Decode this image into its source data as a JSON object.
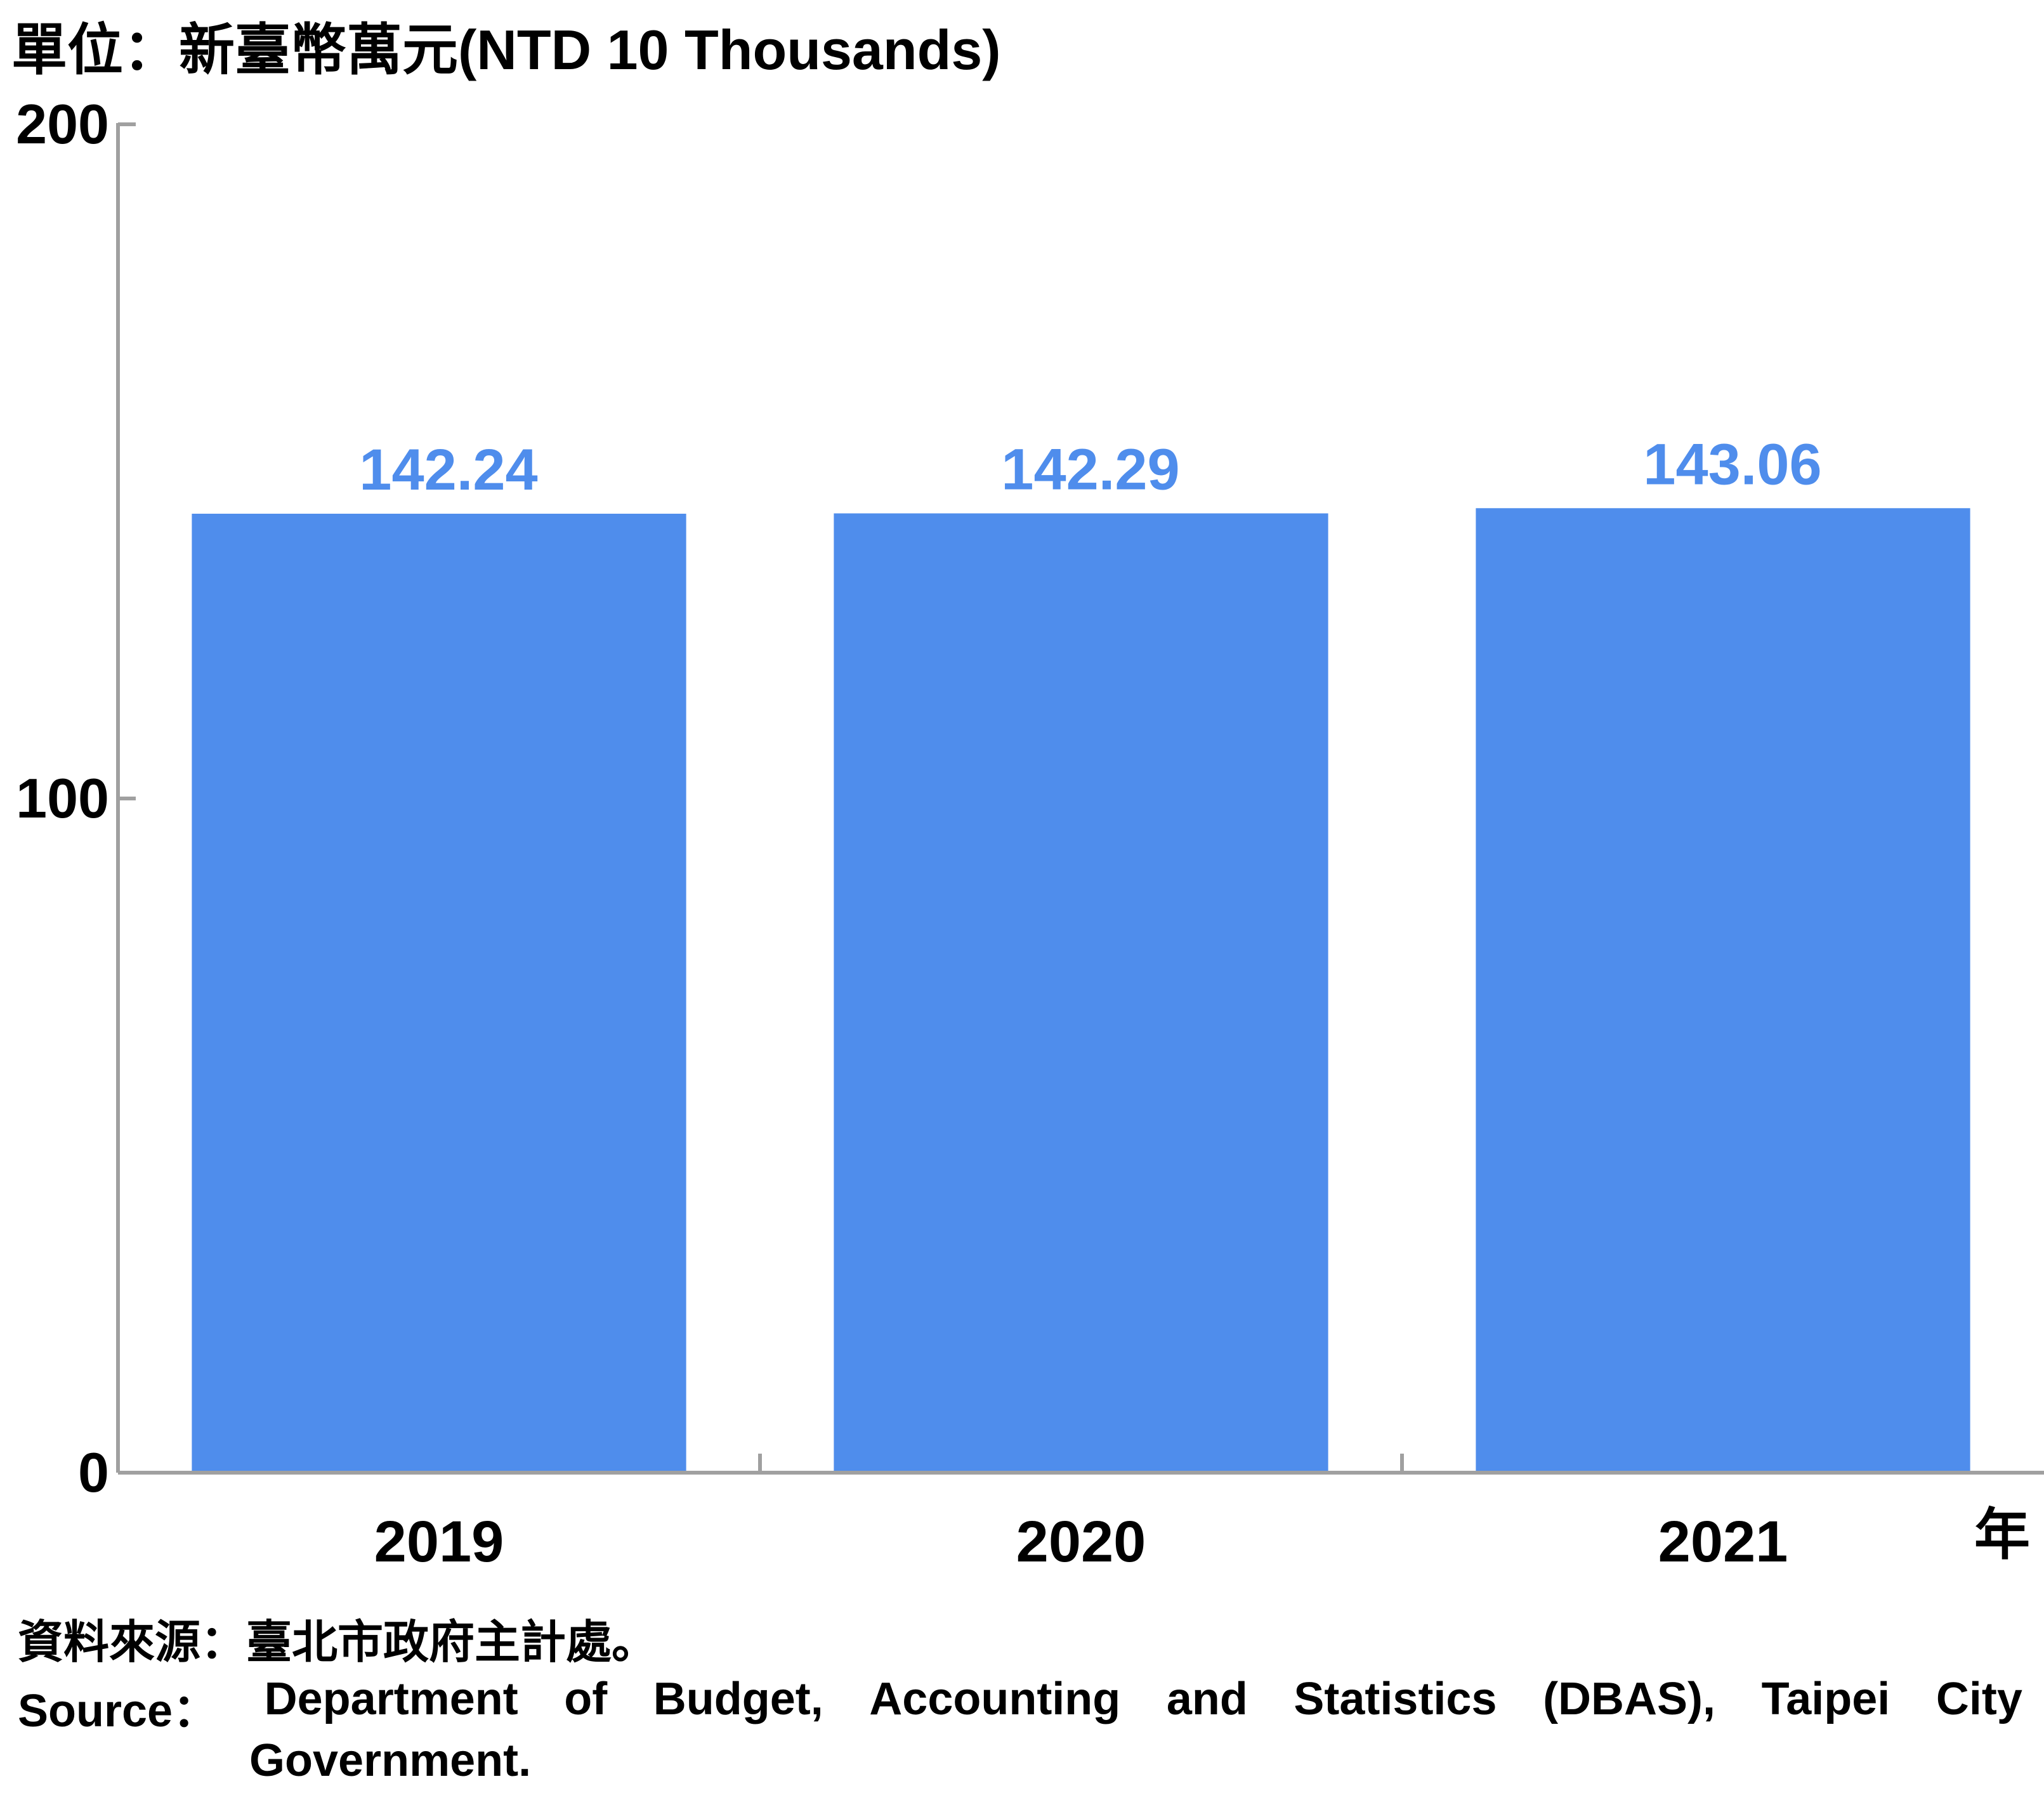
{
  "unit_label": "單位：新臺幣萬元(NTD 10 Thousands)",
  "x_unit_label": "年",
  "source": {
    "zh": "資料來源：臺北市政府主計處。",
    "en_prefix": "Source：",
    "en_line1_words": [
      "Department",
      "of",
      "Budget,",
      "Accounting",
      "and",
      "Statistics",
      "(DBAS),",
      "Taipei",
      "City"
    ],
    "en_line2": "Government."
  },
  "colors": {
    "bar": "#4F8DEC",
    "label": "#4F8DEC",
    "axis": "#A0A0A0"
  },
  "chart_data": {
    "type": "bar",
    "categories": [
      "2019",
      "2020",
      "2021"
    ],
    "values": [
      142.24,
      142.29,
      143.06
    ],
    "data_labels": [
      "142.24",
      "142.29",
      "143.06"
    ],
    "yticks": [
      0,
      100,
      200
    ],
    "ylim": [
      0,
      200
    ],
    "grid": false,
    "legend": "none"
  }
}
